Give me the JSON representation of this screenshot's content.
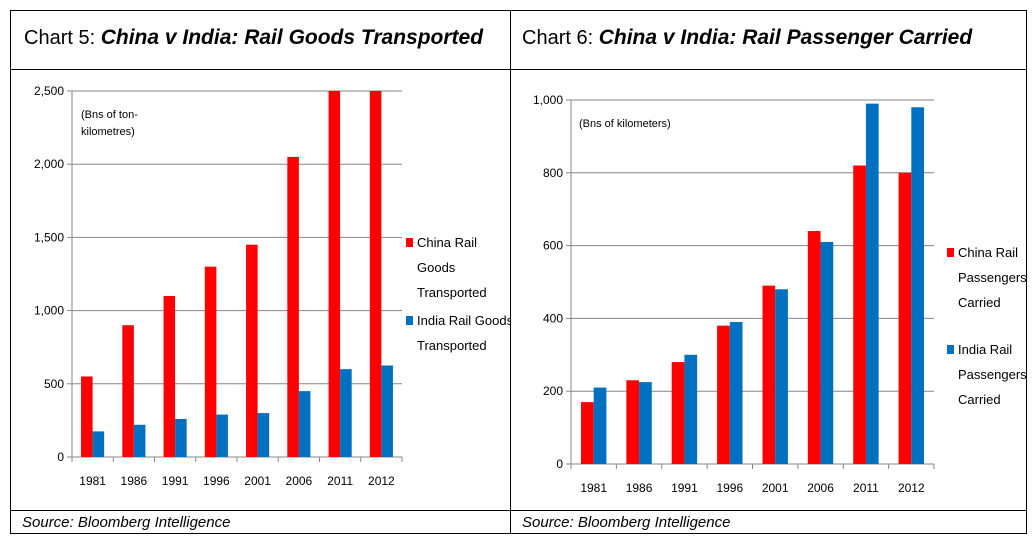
{
  "chart_data": [
    {
      "type": "bar",
      "title_prefix": "Chart 5: ",
      "title": "China v India: Rail Goods Transported",
      "unit_note": [
        "(Bns of ton-",
        "kilometres)"
      ],
      "categories": [
        "1981",
        "1986",
        "1991",
        "1996",
        "2001",
        "2006",
        "2011",
        "2012"
      ],
      "series": [
        {
          "name": [
            "China Rail",
            "Goods",
            "Transported"
          ],
          "color": "#ff0000",
          "values": [
            550,
            900,
            1100,
            1300,
            1450,
            2050,
            2500,
            2500
          ]
        },
        {
          "name": [
            "India Rail Goods",
            "Transported"
          ],
          "color": "#0070c0",
          "values": [
            175,
            220,
            260,
            290,
            300,
            450,
            600,
            625
          ]
        }
      ],
      "ylim": [
        0,
        2500
      ],
      "yticks": [
        "0",
        "500",
        "1,000",
        "1,500",
        "2,000",
        "2,500"
      ],
      "ytick_values": [
        0,
        500,
        1000,
        1500,
        2000,
        2500
      ],
      "grid": true,
      "legend": "right",
      "source": "Source: Bloomberg Intelligence"
    },
    {
      "type": "bar",
      "title_prefix": "Chart 6: ",
      "title": "China v India: Rail Passenger Carried",
      "unit_note": [
        "(Bns of kilometers)"
      ],
      "categories": [
        "1981",
        "1986",
        "1991",
        "1996",
        "2001",
        "2006",
        "2011",
        "2012"
      ],
      "series": [
        {
          "name": [
            "China Rail",
            "Passengers",
            "Carried"
          ],
          "color": "#ff0000",
          "values": [
            170,
            230,
            280,
            380,
            490,
            640,
            820,
            800
          ]
        },
        {
          "name": [
            "India Rail",
            "Passengers",
            "Carried"
          ],
          "color": "#0070c0",
          "values": [
            210,
            225,
            300,
            390,
            480,
            610,
            990,
            980
          ]
        }
      ],
      "ylim": [
        0,
        1000
      ],
      "yticks": [
        "0",
        "200",
        "400",
        "600",
        "800",
        "1,000"
      ],
      "ytick_values": [
        0,
        200,
        400,
        600,
        800,
        1000
      ],
      "grid": true,
      "legend": "right",
      "source": "Source: Bloomberg Intelligence"
    }
  ]
}
